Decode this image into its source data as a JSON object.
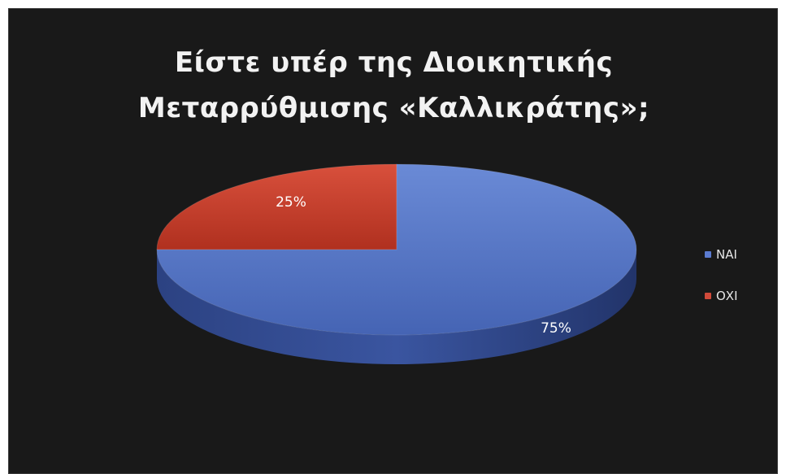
{
  "chart_data": {
    "type": "pie",
    "title_lines": [
      "Είστε υπέρ της Διοικητικής",
      "Μεταρρύθμισης «Καλλικράτης»;"
    ],
    "slices": [
      {
        "label": "ΝΑΙ",
        "value": 75,
        "display": "75%",
        "color": "#4f6fc0"
      },
      {
        "label": "ΟΧΙ",
        "value": 25,
        "display": "25%",
        "color": "#c0392b"
      }
    ],
    "legend_position": "right",
    "style": "3d"
  }
}
